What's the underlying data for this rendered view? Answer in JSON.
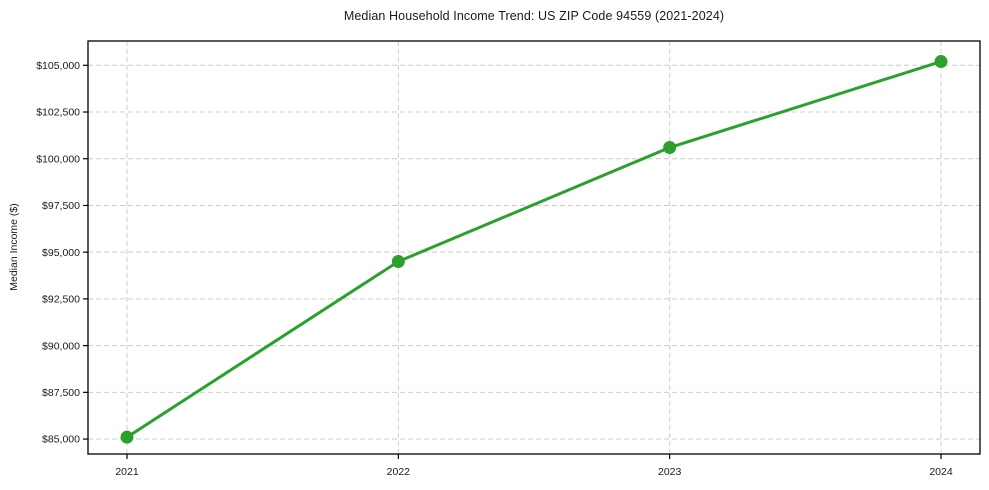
{
  "chart_data": {
    "type": "line",
    "title": "Median Household Income Trend: US ZIP Code 94559 (2021-2024)",
    "xlabel": "",
    "ylabel": "Median Income ($)",
    "x": [
      "2021",
      "2022",
      "2023",
      "2024"
    ],
    "values": [
      85100,
      94500,
      100600,
      105200
    ],
    "ylim": [
      84200,
      106300
    ],
    "yticks": [
      {
        "value": 85000,
        "label": "$85,000"
      },
      {
        "value": 87500,
        "label": "$87,500"
      },
      {
        "value": 90000,
        "label": "$90,000"
      },
      {
        "value": 92500,
        "label": "$92,500"
      },
      {
        "value": 95000,
        "label": "$95,000"
      },
      {
        "value": 97500,
        "label": "$97,500"
      },
      {
        "value": 100000,
        "label": "$100,000"
      },
      {
        "value": 102500,
        "label": "$102,500"
      },
      {
        "value": 105000,
        "label": "$105,000"
      }
    ],
    "grid": "dashed",
    "legend_position": "none",
    "colors": {
      "line": "#2ca02c",
      "marker": "#2ca02c",
      "grid": "#cccccc",
      "frame": "#000000",
      "text": "#1a1a1a",
      "background": "#ffffff"
    }
  }
}
